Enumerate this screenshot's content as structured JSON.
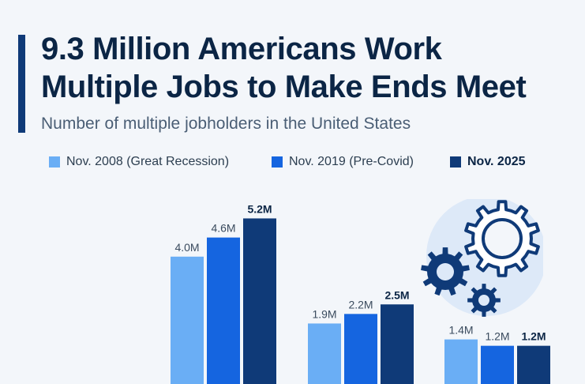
{
  "header": {
    "title_line1": "9.3 Million Americans Work",
    "title_line2": "Multiple Jobs to Make Ends Meet",
    "subtitle": "Number of multiple jobholders in the United States"
  },
  "legend": [
    {
      "label": "Nov. 2008 (Great Recession)",
      "color": "#6aaef5"
    },
    {
      "label": "Nov. 2019 (Pre-Covid)",
      "color": "#1565e0"
    },
    {
      "label": "Nov. 2025",
      "color": "#0f3a78"
    }
  ],
  "chart_data": {
    "type": "bar",
    "categories": [
      "",
      "",
      ""
    ],
    "series": [
      {
        "name": "Nov. 2008 (Great Recession)",
        "values": [
          4.0,
          1.9,
          1.4
        ],
        "labels": [
          "4.0M",
          "1.9M",
          "1.4M"
        ],
        "color": "#6aaef5"
      },
      {
        "name": "Nov. 2019 (Pre-Covid)",
        "values": [
          4.6,
          2.2,
          1.2
        ],
        "labels": [
          "4.6M",
          "2.2M",
          "1.2M"
        ],
        "color": "#1565e0"
      },
      {
        "name": "Nov. 2025",
        "values": [
          5.2,
          2.5,
          1.2
        ],
        "labels": [
          "5.2M",
          "2.5M",
          "1.2M"
        ],
        "color": "#0f3a78"
      }
    ],
    "title": "9.3 Million Americans Work Multiple Jobs to Make Ends Meet",
    "subtitle": "Number of multiple jobholders in the United States",
    "legend_position": "top-left",
    "grid": false
  },
  "illustration": {
    "icons": [
      "large-gear-icon",
      "medium-gear-icon",
      "small-gear-icon"
    ],
    "colors": {
      "circle": "#dde9f8",
      "gear_dark": "#0f3a78",
      "gear_outline": "#ffffff"
    }
  }
}
